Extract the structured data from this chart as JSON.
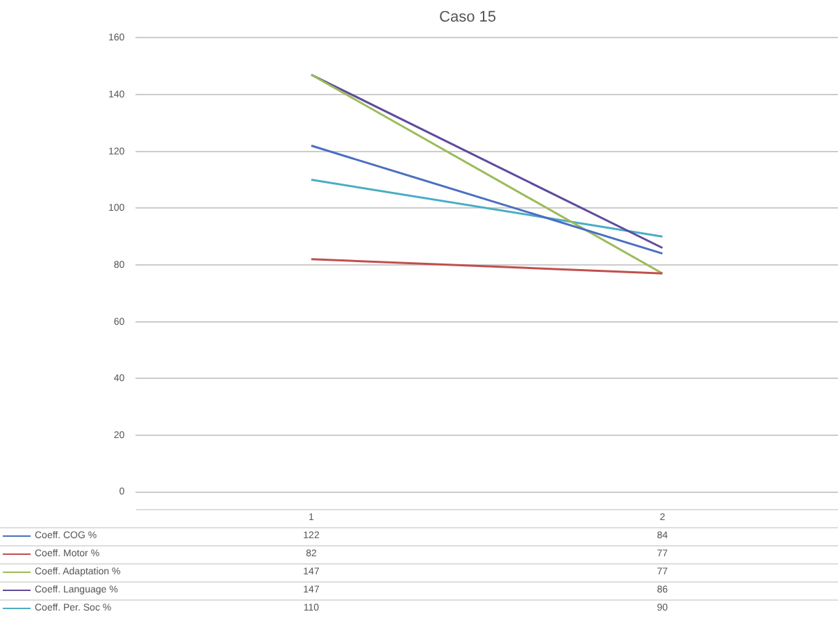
{
  "chart_data": {
    "type": "line",
    "title": "Caso 15",
    "categories": [
      "1",
      "2"
    ],
    "series": [
      {
        "name": "Coeff. COG %",
        "color": "#4a6fc0",
        "values": [
          122,
          84
        ]
      },
      {
        "name": "Coeff. Motor %",
        "color": "#c0504d",
        "values": [
          82,
          77
        ]
      },
      {
        "name": "Coeff. Adaptation %",
        "color": "#9bbb59",
        "values": [
          147,
          77
        ]
      },
      {
        "name": "Coeff. Language %",
        "color": "#604a9b",
        "values": [
          147,
          86
        ]
      },
      {
        "name": "Coeff. Per. Soc %",
        "color": "#4bacc6",
        "values": [
          110,
          90
        ]
      }
    ],
    "ylim": [
      0,
      160
    ],
    "yticks": [
      0,
      20,
      40,
      60,
      80,
      100,
      120,
      140,
      160
    ],
    "grid": "y",
    "legend": "bottom",
    "marker": "none",
    "line_style": "solid",
    "data_labels": true
  }
}
